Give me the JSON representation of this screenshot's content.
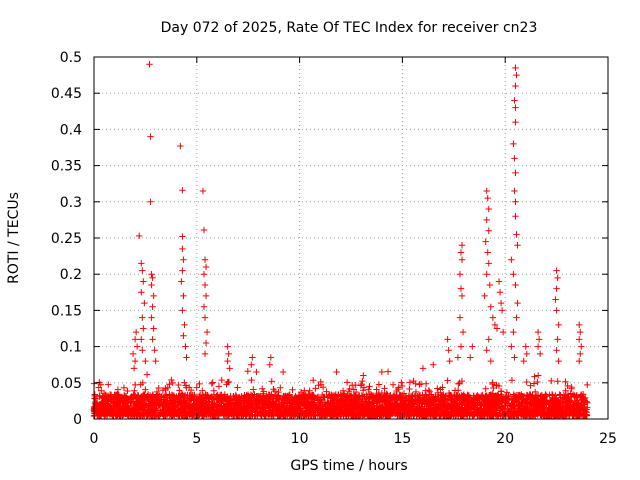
{
  "chart_data": {
    "type": "scatter",
    "title": "Day 072 of 2025, Rate Of TEC Index for receiver cn23",
    "xlabel": "GPS time / hours",
    "ylabel": "ROTI / TECUs",
    "xlim": [
      0,
      25
    ],
    "ylim": [
      0,
      0.5
    ],
    "xticks": [
      0,
      5,
      10,
      15,
      20,
      25
    ],
    "yticks": [
      0,
      0.05,
      0.1,
      0.15,
      0.2,
      0.25,
      0.3,
      0.35,
      0.4,
      0.45,
      0.5
    ],
    "grid": true,
    "marker": "+",
    "color": "#ff0000",
    "series": [
      {
        "name": "ROTI",
        "points": [
          [
            2.7,
            0.49
          ],
          [
            2.75,
            0.39
          ],
          [
            2.75,
            0.3
          ],
          [
            4.2,
            0.377
          ],
          [
            4.3,
            0.316
          ],
          [
            5.3,
            0.315
          ],
          [
            5.35,
            0.261
          ],
          [
            2.2,
            0.253
          ],
          [
            4.3,
            0.252
          ],
          [
            20.5,
            0.485
          ],
          [
            20.55,
            0.475
          ],
          [
            20.5,
            0.46
          ],
          [
            20.45,
            0.44
          ],
          [
            20.5,
            0.43
          ],
          [
            20.5,
            0.41
          ],
          [
            20.4,
            0.38
          ],
          [
            20.45,
            0.36
          ],
          [
            20.5,
            0.34
          ],
          [
            20.45,
            0.315
          ],
          [
            20.5,
            0.3
          ],
          [
            20.5,
            0.28
          ],
          [
            20.55,
            0.255
          ],
          [
            20.6,
            0.24
          ],
          [
            20.3,
            0.22
          ],
          [
            20.4,
            0.2
          ],
          [
            20.5,
            0.185
          ],
          [
            20.6,
            0.16
          ],
          [
            20.55,
            0.14
          ],
          [
            20.4,
            0.12
          ],
          [
            20.3,
            0.1
          ],
          [
            20.45,
            0.085
          ],
          [
            19.1,
            0.315
          ],
          [
            19.15,
            0.305
          ],
          [
            19.2,
            0.29
          ],
          [
            19.1,
            0.275
          ],
          [
            19.2,
            0.26
          ],
          [
            19.05,
            0.245
          ],
          [
            19.15,
            0.23
          ],
          [
            19.2,
            0.215
          ],
          [
            19.1,
            0.2
          ],
          [
            19.25,
            0.185
          ],
          [
            19.0,
            0.17
          ],
          [
            19.3,
            0.155
          ],
          [
            19.4,
            0.14
          ],
          [
            19.5,
            0.13
          ],
          [
            19.6,
            0.125
          ],
          [
            19.2,
            0.11
          ],
          [
            19.1,
            0.095
          ],
          [
            19.3,
            0.08
          ],
          [
            19.7,
            0.19
          ],
          [
            19.75,
            0.175
          ],
          [
            19.8,
            0.16
          ],
          [
            19.85,
            0.15
          ],
          [
            19.9,
            0.12
          ],
          [
            17.9,
            0.24
          ],
          [
            17.85,
            0.23
          ],
          [
            17.9,
            0.22
          ],
          [
            17.8,
            0.2
          ],
          [
            17.85,
            0.18
          ],
          [
            17.9,
            0.17
          ],
          [
            17.8,
            0.14
          ],
          [
            17.95,
            0.12
          ],
          [
            17.85,
            0.1
          ],
          [
            17.7,
            0.085
          ],
          [
            17.2,
            0.11
          ],
          [
            17.25,
            0.095
          ],
          [
            17.3,
            0.08
          ],
          [
            18.4,
            0.1
          ],
          [
            18.3,
            0.085
          ],
          [
            2.05,
            0.12
          ],
          [
            2.0,
            0.11
          ],
          [
            2.1,
            0.1
          ],
          [
            1.9,
            0.09
          ],
          [
            2.0,
            0.08
          ],
          [
            1.95,
            0.07
          ],
          [
            2.3,
            0.215
          ],
          [
            2.35,
            0.205
          ],
          [
            2.4,
            0.19
          ],
          [
            2.3,
            0.175
          ],
          [
            2.45,
            0.16
          ],
          [
            2.35,
            0.14
          ],
          [
            2.4,
            0.125
          ],
          [
            2.3,
            0.11
          ],
          [
            2.35,
            0.095
          ],
          [
            2.5,
            0.08
          ],
          [
            2.8,
            0.2
          ],
          [
            2.85,
            0.195
          ],
          [
            2.8,
            0.185
          ],
          [
            2.9,
            0.17
          ],
          [
            2.85,
            0.155
          ],
          [
            2.8,
            0.14
          ],
          [
            2.9,
            0.125
          ],
          [
            2.85,
            0.11
          ],
          [
            2.95,
            0.095
          ],
          [
            3.0,
            0.08
          ],
          [
            4.3,
            0.235
          ],
          [
            4.35,
            0.22
          ],
          [
            4.3,
            0.205
          ],
          [
            4.25,
            0.19
          ],
          [
            4.35,
            0.17
          ],
          [
            4.3,
            0.15
          ],
          [
            4.4,
            0.13
          ],
          [
            4.35,
            0.115
          ],
          [
            4.45,
            0.1
          ],
          [
            4.5,
            0.085
          ],
          [
            5.4,
            0.22
          ],
          [
            5.45,
            0.21
          ],
          [
            5.35,
            0.2
          ],
          [
            5.4,
            0.185
          ],
          [
            5.45,
            0.17
          ],
          [
            5.35,
            0.155
          ],
          [
            5.4,
            0.14
          ],
          [
            5.5,
            0.12
          ],
          [
            5.45,
            0.105
          ],
          [
            5.4,
            0.09
          ],
          [
            6.5,
            0.1
          ],
          [
            6.55,
            0.09
          ],
          [
            6.5,
            0.08
          ],
          [
            6.6,
            0.07
          ],
          [
            7.7,
            0.085
          ],
          [
            7.65,
            0.075
          ],
          [
            8.6,
            0.085
          ],
          [
            8.55,
            0.075
          ],
          [
            7.9,
            0.065
          ],
          [
            9.2,
            0.065
          ],
          [
            11.8,
            0.065
          ],
          [
            13.1,
            0.06
          ],
          [
            14.0,
            0.065
          ],
          [
            16.0,
            0.07
          ],
          [
            16.5,
            0.075
          ],
          [
            21.6,
            0.12
          ],
          [
            21.65,
            0.11
          ],
          [
            21.6,
            0.1
          ],
          [
            21.7,
            0.09
          ],
          [
            22.5,
            0.205
          ],
          [
            22.55,
            0.195
          ],
          [
            22.5,
            0.18
          ],
          [
            22.45,
            0.165
          ],
          [
            22.5,
            0.15
          ],
          [
            22.6,
            0.13
          ],
          [
            22.55,
            0.11
          ],
          [
            22.5,
            0.095
          ],
          [
            22.6,
            0.08
          ],
          [
            23.6,
            0.13
          ],
          [
            23.65,
            0.12
          ],
          [
            23.6,
            0.11
          ],
          [
            23.7,
            0.1
          ],
          [
            23.65,
            0.09
          ],
          [
            23.6,
            0.08
          ],
          [
            21.0,
            0.1
          ],
          [
            21.05,
            0.09
          ],
          [
            20.9,
            0.08
          ]
        ]
      }
    ],
    "background_noise": {
      "x_range": [
        0,
        24
      ],
      "typical_max": 0.05,
      "base_max": 0.03,
      "description": "dense band of ROTI values between 0 and ~0.05 TECUs across the full day"
    }
  }
}
